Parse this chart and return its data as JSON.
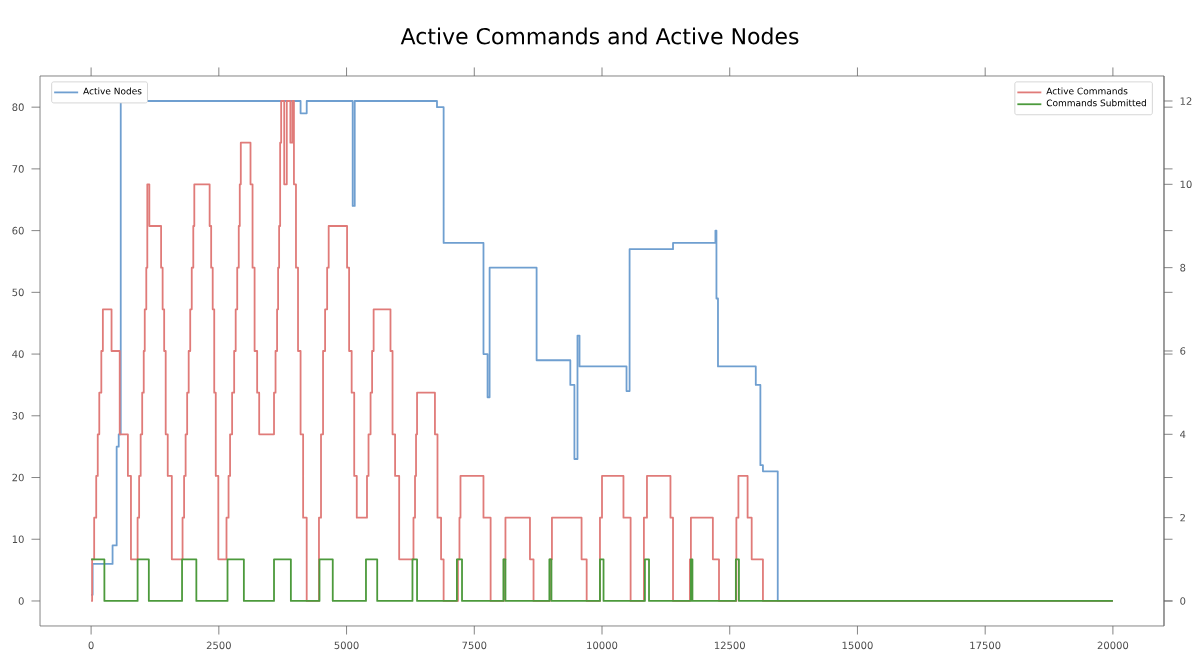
{
  "chart_data": {
    "type": "step",
    "title": "Active Commands and Active Nodes",
    "xlim": [
      -1000,
      21000
    ],
    "xticks": [
      0,
      2500,
      5000,
      7500,
      10000,
      12500,
      15000,
      17500,
      20000
    ],
    "ylim": [
      -4.05,
      85.05
    ],
    "yticks": [
      0,
      10,
      20,
      30,
      40,
      50,
      60,
      70,
      80
    ],
    "y2lim": [
      -0.6,
      12.6
    ],
    "y2ticks": [
      0,
      2,
      4,
      6,
      8,
      10,
      12
    ],
    "legend": "top left",
    "grid": false,
    "series": [
      {
        "name": "Active Nodes",
        "color": "#6f9fd0",
        "axis": "y",
        "x": [
          0,
          30,
          420,
          500,
          540,
          580,
          4100,
          4220,
          5120,
          5160,
          6770,
          6900,
          7680,
          7760,
          7800,
          8720,
          9380,
          9460,
          9520,
          9560,
          10480,
          10540,
          11390,
          12220,
          12240,
          12270,
          13010,
          13100,
          13150,
          13440,
          20000
        ],
        "values": [
          1,
          6,
          9,
          25,
          27,
          81,
          79,
          81,
          64,
          81,
          80,
          58,
          40,
          33,
          54,
          39,
          35,
          23,
          43,
          38,
          34,
          57,
          58,
          60,
          49,
          38,
          35,
          22,
          21,
          0,
          0
        ]
      },
      {
        "name": "Active Commands",
        "color": "#e07b79",
        "axis": "y2",
        "x": [
          0,
          20,
          60,
          100,
          130,
          160,
          200,
          230,
          400,
          560,
          720,
          780,
          910,
          940,
          970,
          1000,
          1030,
          1050,
          1080,
          1100,
          1140,
          1370,
          1400,
          1430,
          1460,
          1500,
          1580,
          1790,
          1820,
          1850,
          1880,
          1910,
          1940,
          1970,
          2000,
          2020,
          2320,
          2350,
          2380,
          2410,
          2440,
          2490,
          2650,
          2690,
          2720,
          2760,
          2800,
          2830,
          2860,
          2890,
          2910,
          2930,
          3120,
          3160,
          3200,
          3250,
          3290,
          3580,
          3610,
          3640,
          3660,
          3680,
          3700,
          3720,
          3780,
          3830,
          3900,
          3940,
          3970,
          4010,
          4050,
          4100,
          4150,
          4220,
          4460,
          4500,
          4540,
          4580,
          4620,
          4650,
          5010,
          5050,
          5100,
          5150,
          5200,
          5400,
          5430,
          5470,
          5500,
          5530,
          5860,
          5900,
          5950,
          6030,
          6310,
          6340,
          6360,
          6380,
          6730,
          6780,
          6850,
          6900,
          7180,
          7210,
          7230,
          7680,
          7820,
          8080,
          8110,
          8590,
          8660,
          8980,
          9020,
          9600,
          9700,
          9960,
          10000,
          10420,
          10560,
          10820,
          10880,
          11340,
          11390,
          11720,
          11740,
          12170,
          12290,
          12630,
          12670,
          12850,
          12930,
          13150,
          20000
        ],
        "values": [
          0,
          1,
          2,
          3,
          4,
          5,
          6,
          7,
          6,
          4,
          3,
          1,
          2,
          3,
          4,
          5,
          6,
          7,
          8,
          10,
          9,
          8,
          7,
          6,
          4,
          3,
          1,
          2,
          3,
          4,
          5,
          6,
          7,
          8,
          9,
          10,
          9,
          8,
          7,
          5,
          3,
          1,
          2,
          3,
          4,
          5,
          6,
          7,
          8,
          9,
          10,
          11,
          10,
          8,
          6,
          5,
          4,
          5,
          6,
          7,
          8,
          9,
          11,
          12,
          10,
          12,
          11,
          12,
          10,
          8,
          6,
          4,
          2,
          0,
          2,
          4,
          6,
          7,
          8,
          9,
          8,
          6,
          5,
          3,
          2,
          3,
          4,
          5,
          6,
          7,
          6,
          4,
          3,
          1,
          2,
          3,
          4,
          5,
          4,
          2,
          1,
          0,
          1,
          2,
          3,
          2,
          0,
          1,
          2,
          1,
          0,
          1,
          2,
          1,
          0,
          2,
          3,
          2,
          0,
          2,
          3,
          2,
          0,
          1,
          2,
          1,
          0,
          2,
          3,
          2,
          1,
          0,
          0
        ]
      },
      {
        "name": "Commands Submitted",
        "color": "#4c9a3c",
        "axis": "y2",
        "x": [
          0,
          260,
          910,
          1130,
          1780,
          2060,
          2670,
          2990,
          3580,
          3910,
          4470,
          4730,
          5380,
          5600,
          6290,
          6380,
          7160,
          7260,
          8070,
          8110,
          8970,
          9010,
          9960,
          10030,
          10840,
          10920,
          11740,
          11770,
          12620,
          12680,
          20000
        ],
        "values": [
          1,
          0,
          1,
          0,
          1,
          0,
          1,
          0,
          1,
          0,
          1,
          0,
          1,
          0,
          1,
          0,
          1,
          0,
          1,
          0,
          1,
          0,
          1,
          0,
          1,
          0,
          1,
          0,
          1,
          0,
          0
        ]
      }
    ]
  }
}
